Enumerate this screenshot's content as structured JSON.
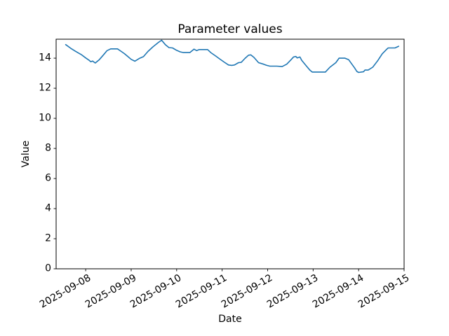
{
  "figure": {
    "background": "#ffffff",
    "frame_color": "#000000",
    "text_color": "#000000"
  },
  "chart_data": {
    "type": "line",
    "title": "Parameter values",
    "xlabel": "Date",
    "ylabel": "Value",
    "grid": false,
    "legend": null,
    "line_color": "#1f77b4",
    "line_width": 1.6,
    "x_unit": "days since 2025-09-07 00:00",
    "xlim_days": [
      0.35,
      8.0
    ],
    "ylim": [
      0,
      15.26
    ],
    "y_ticks": [
      0,
      2,
      4,
      6,
      8,
      10,
      12,
      14
    ],
    "x_tick_days": [
      1,
      2,
      3,
      4,
      5,
      6,
      7,
      8
    ],
    "x_tick_labels": [
      "2025-09-08",
      "2025-09-09",
      "2025-09-10",
      "2025-09-11",
      "2025-09-12",
      "2025-09-13",
      "2025-09-14",
      "2025-09-15"
    ],
    "series": [
      {
        "name": "parameter-values",
        "points": [
          [
            0.56,
            14.9
          ],
          [
            0.67,
            14.66
          ],
          [
            0.78,
            14.45
          ],
          [
            0.9,
            14.24
          ],
          [
            1.0,
            14.02
          ],
          [
            1.08,
            13.85
          ],
          [
            1.11,
            13.76
          ],
          [
            1.15,
            13.81
          ],
          [
            1.21,
            13.68
          ],
          [
            1.3,
            13.9
          ],
          [
            1.4,
            14.25
          ],
          [
            1.47,
            14.5
          ],
          [
            1.55,
            14.62
          ],
          [
            1.7,
            14.62
          ],
          [
            1.78,
            14.45
          ],
          [
            1.85,
            14.3
          ],
          [
            1.93,
            14.1
          ],
          [
            2.0,
            13.92
          ],
          [
            2.08,
            13.8
          ],
          [
            2.19,
            14.0
          ],
          [
            2.27,
            14.1
          ],
          [
            2.37,
            14.45
          ],
          [
            2.47,
            14.73
          ],
          [
            2.53,
            14.88
          ],
          [
            2.6,
            15.05
          ],
          [
            2.67,
            15.19
          ],
          [
            2.75,
            14.9
          ],
          [
            2.83,
            14.7
          ],
          [
            2.91,
            14.68
          ],
          [
            3.0,
            14.52
          ],
          [
            3.08,
            14.42
          ],
          [
            3.15,
            14.37
          ],
          [
            3.29,
            14.37
          ],
          [
            3.38,
            14.6
          ],
          [
            3.44,
            14.5
          ],
          [
            3.5,
            14.57
          ],
          [
            3.68,
            14.57
          ],
          [
            3.75,
            14.37
          ],
          [
            3.86,
            14.14
          ],
          [
            3.95,
            13.94
          ],
          [
            4.04,
            13.75
          ],
          [
            4.14,
            13.55
          ],
          [
            4.21,
            13.52
          ],
          [
            4.27,
            13.55
          ],
          [
            4.36,
            13.7
          ],
          [
            4.42,
            13.72
          ],
          [
            4.5,
            13.98
          ],
          [
            4.58,
            14.2
          ],
          [
            4.63,
            14.22
          ],
          [
            4.7,
            14.05
          ],
          [
            4.8,
            13.7
          ],
          [
            4.91,
            13.6
          ],
          [
            4.98,
            13.52
          ],
          [
            5.05,
            13.47
          ],
          [
            5.2,
            13.47
          ],
          [
            5.32,
            13.44
          ],
          [
            5.42,
            13.6
          ],
          [
            5.5,
            13.85
          ],
          [
            5.57,
            14.08
          ],
          [
            5.62,
            14.11
          ],
          [
            5.65,
            14.02
          ],
          [
            5.71,
            14.08
          ],
          [
            5.75,
            13.85
          ],
          [
            5.86,
            13.45
          ],
          [
            5.93,
            13.2
          ],
          [
            5.98,
            13.08
          ],
          [
            6.1,
            13.08
          ],
          [
            6.27,
            13.08
          ],
          [
            6.37,
            13.4
          ],
          [
            6.5,
            13.7
          ],
          [
            6.57,
            14.0
          ],
          [
            6.7,
            14.0
          ],
          [
            6.78,
            13.9
          ],
          [
            6.91,
            13.36
          ],
          [
            6.96,
            13.12
          ],
          [
            7.0,
            13.05
          ],
          [
            7.11,
            13.1
          ],
          [
            7.14,
            13.21
          ],
          [
            7.21,
            13.21
          ],
          [
            7.31,
            13.4
          ],
          [
            7.42,
            13.83
          ],
          [
            7.52,
            14.29
          ],
          [
            7.62,
            14.6
          ],
          [
            7.65,
            14.68
          ],
          [
            7.8,
            14.68
          ],
          [
            7.88,
            14.79
          ]
        ]
      }
    ]
  }
}
